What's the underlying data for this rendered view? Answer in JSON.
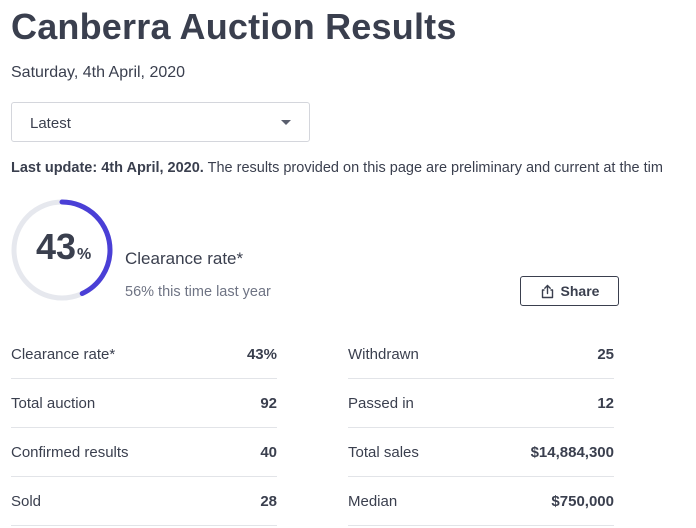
{
  "header": {
    "title": "Canberra Auction Results",
    "date": "Saturday, 4th April, 2020"
  },
  "filter": {
    "selected": "Latest"
  },
  "update": {
    "bold": "Last update: 4th April, 2020.",
    "text": " The results provided on this page are preliminary and current at the tim"
  },
  "summary": {
    "clearance_value": "43",
    "clearance_unit": "%",
    "clearance_fraction": 0.43,
    "clearance_label": "Clearance rate*",
    "last_year": "56% this time last year",
    "share_label": "Share"
  },
  "colors": {
    "accent": "#4a3fd6",
    "track": "#e6e8ee",
    "text": "#3a3f4e"
  },
  "stats": {
    "left": [
      {
        "label": "Clearance rate*",
        "value": "43%"
      },
      {
        "label": "Total auction",
        "value": "92"
      },
      {
        "label": "Confirmed results",
        "value": "40"
      },
      {
        "label": "Sold",
        "value": "28"
      }
    ],
    "right": [
      {
        "label": "Withdrawn",
        "value": "25"
      },
      {
        "label": "Passed in",
        "value": "12"
      },
      {
        "label": "Total sales",
        "value": "$14,884,300"
      },
      {
        "label": "Median",
        "value": "$750,000"
      }
    ]
  }
}
